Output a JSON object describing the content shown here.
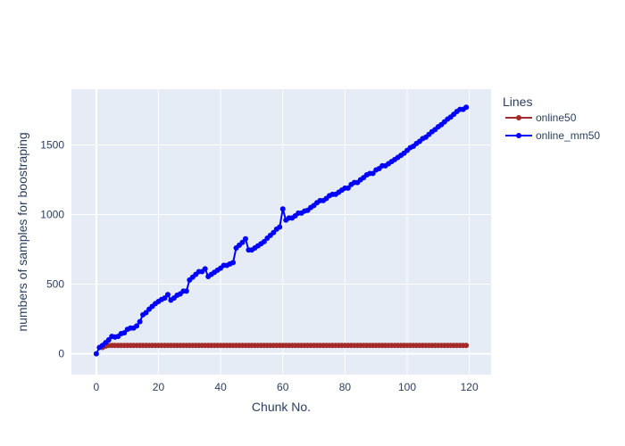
{
  "chart_data": {
    "type": "line",
    "xlabel": "Chunk No.",
    "ylabel": "numbers of samples for boostraping",
    "xlim": [
      -8,
      127
    ],
    "ylim": [
      -150,
      1900
    ],
    "xticks": [
      0,
      20,
      40,
      60,
      80,
      100,
      120
    ],
    "yticks": [
      0,
      500,
      1000,
      1500
    ],
    "grid": true,
    "legend": {
      "title": "Lines",
      "placement": "top-right"
    },
    "colors": {
      "plot_bg": "#e5ecf6",
      "grid": "#ffffff",
      "text": "#2a3f5f"
    },
    "series": [
      {
        "name": "online50",
        "color": "#a52a2a",
        "x": [
          2,
          3,
          4,
          5,
          6,
          7,
          8,
          9,
          10,
          11,
          12,
          13,
          14,
          15,
          16,
          17,
          18,
          19,
          20,
          21,
          22,
          23,
          24,
          25,
          26,
          27,
          28,
          29,
          30,
          31,
          32,
          33,
          34,
          35,
          36,
          37,
          38,
          39,
          40,
          41,
          42,
          43,
          44,
          45,
          46,
          47,
          48,
          49,
          50,
          51,
          52,
          53,
          54,
          55,
          56,
          57,
          58,
          59,
          60,
          61,
          62,
          63,
          64,
          65,
          66,
          67,
          68,
          69,
          70,
          71,
          72,
          73,
          74,
          75,
          76,
          77,
          78,
          79,
          80,
          81,
          82,
          83,
          84,
          85,
          86,
          87,
          88,
          89,
          90,
          91,
          92,
          93,
          94,
          95,
          96,
          97,
          98,
          99,
          100,
          101,
          102,
          103,
          104,
          105,
          106,
          107,
          108,
          109,
          110,
          111,
          112,
          113,
          114,
          115,
          116,
          117,
          118,
          119
        ],
        "y": [
          45,
          55,
          60,
          60,
          60,
          60,
          60,
          60,
          60,
          60,
          60,
          60,
          60,
          60,
          60,
          60,
          60,
          60,
          60,
          60,
          60,
          60,
          60,
          60,
          60,
          60,
          60,
          60,
          60,
          60,
          60,
          60,
          60,
          60,
          60,
          60,
          60,
          60,
          60,
          60,
          60,
          60,
          60,
          60,
          60,
          60,
          60,
          60,
          60,
          60,
          60,
          60,
          60,
          60,
          60,
          60,
          60,
          60,
          60,
          60,
          60,
          60,
          60,
          60,
          60,
          60,
          60,
          60,
          60,
          60,
          60,
          60,
          60,
          60,
          60,
          60,
          60,
          60,
          60,
          60,
          60,
          60,
          60,
          60,
          60,
          60,
          60,
          60,
          60,
          60,
          60,
          60,
          60,
          60,
          60,
          60,
          60,
          60,
          60,
          60,
          60,
          60,
          60,
          60,
          60,
          60,
          60,
          60,
          60,
          60,
          60,
          60,
          60,
          60,
          60,
          60,
          60,
          60
        ]
      },
      {
        "name": "online_mm50",
        "color": "#0000ff",
        "x": [
          0,
          1,
          2,
          3,
          4,
          5,
          6,
          7,
          8,
          9,
          10,
          11,
          12,
          13,
          14,
          15,
          16,
          17,
          18,
          19,
          20,
          21,
          22,
          23,
          24,
          25,
          26,
          27,
          28,
          29,
          30,
          31,
          32,
          33,
          34,
          35,
          36,
          37,
          38,
          39,
          40,
          41,
          42,
          43,
          44,
          45,
          46,
          47,
          48,
          49,
          50,
          51,
          52,
          53,
          54,
          55,
          56,
          57,
          58,
          59,
          60,
          61,
          62,
          63,
          64,
          65,
          66,
          67,
          68,
          69,
          70,
          71,
          72,
          73,
          74,
          75,
          76,
          77,
          78,
          79,
          80,
          81,
          82,
          83,
          84,
          85,
          86,
          87,
          88,
          89,
          90,
          91,
          92,
          93,
          94,
          95,
          96,
          97,
          98,
          99,
          100,
          101,
          102,
          103,
          104,
          105,
          106,
          107,
          108,
          109,
          110,
          111,
          112,
          113,
          114,
          115,
          116,
          117,
          118,
          119
        ],
        "y": [
          0,
          45,
          60,
          80,
          100,
          125,
          120,
          125,
          145,
          150,
          175,
          185,
          185,
          200,
          230,
          280,
          295,
          320,
          340,
          360,
          375,
          390,
          400,
          425,
          385,
          400,
          420,
          430,
          450,
          450,
          530,
          550,
          570,
          590,
          590,
          610,
          555,
          570,
          585,
          600,
          615,
          635,
          635,
          645,
          655,
          760,
          780,
          800,
          825,
          745,
          745,
          760,
          775,
          790,
          805,
          830,
          850,
          870,
          895,
          910,
          1040,
          960,
          975,
          975,
          990,
          1010,
          1010,
          1025,
          1030,
          1050,
          1065,
          1085,
          1100,
          1100,
          1115,
          1135,
          1145,
          1145,
          1160,
          1175,
          1190,
          1190,
          1215,
          1230,
          1230,
          1250,
          1265,
          1285,
          1295,
          1295,
          1320,
          1330,
          1350,
          1350,
          1365,
          1380,
          1395,
          1410,
          1425,
          1440,
          1460,
          1480,
          1490,
          1510,
          1525,
          1545,
          1555,
          1575,
          1595,
          1610,
          1630,
          1645,
          1665,
          1685,
          1700,
          1720,
          1740,
          1755,
          1755,
          1770
        ]
      }
    ]
  }
}
